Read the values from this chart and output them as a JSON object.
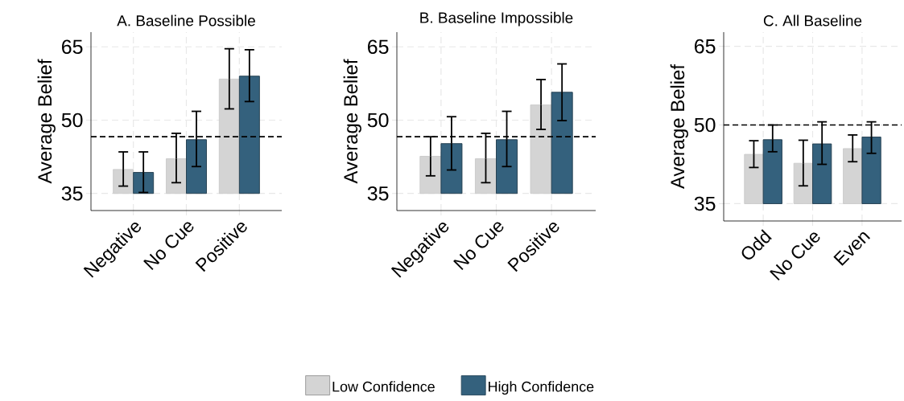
{
  "chart_data": [
    {
      "type": "bar",
      "title": "A. Baseline Possible",
      "ylabel": "Average Belief",
      "categories": [
        "Negative",
        "No Cue",
        "Positive"
      ],
      "series": [
        {
          "color": "#d4d4d4",
          "base": [
            35,
            35,
            35
          ],
          "values": [
            4.9,
            7.1,
            23.4
          ],
          "errors": [
            [
              36.5,
              43.5
            ],
            [
              37.2,
              47.3
            ],
            [
              52.3,
              64.6
            ]
          ]
        },
        {
          "color": "#34617d",
          "base": [
            35,
            35,
            35
          ],
          "values": [
            4.3,
            11.0,
            24.0
          ],
          "errors": [
            [
              35.2,
              43.5
            ],
            [
              40.5,
              51.8
            ],
            [
              53.8,
              64.4
            ]
          ]
        }
      ],
      "ylim": [
        31.5,
        68
      ],
      "yticks": [
        35,
        50,
        65
      ],
      "grid": true,
      "ref_lines": [
        {
          "axis": "y",
          "value": 46.6,
          "line_style": "dashed"
        }
      ]
    },
    {
      "type": "bar",
      "title": "B. Baseline Impossible",
      "ylabel": "Average Belief",
      "categories": [
        "Negative",
        "No Cue",
        "Positive"
      ],
      "series": [
        {
          "name": "Low Confidence",
          "color": "#d4d4d4",
          "base": [
            35,
            35,
            35
          ],
          "values": [
            7.6,
            7.1,
            18.1
          ],
          "errors": [
            [
              38.6,
              46.6
            ],
            [
              37.2,
              47.3
            ],
            [
              48.1,
              58.3
            ]
          ]
        },
        {
          "name": "High Confidence",
          "color": "#34617d",
          "base": [
            35,
            35,
            35
          ],
          "values": [
            10.2,
            11.0,
            20.7
          ],
          "errors": [
            [
              39.8,
              50.7
            ],
            [
              40.5,
              51.8
            ],
            [
              49.9,
              61.5
            ]
          ]
        }
      ],
      "ylim": [
        31.5,
        68
      ],
      "yticks": [
        35,
        50,
        65
      ],
      "grid": true,
      "legend": "bottom",
      "ref_lines": [
        {
          "axis": "y",
          "value": 46.6,
          "line_style": "dashed"
        }
      ]
    },
    {
      "type": "bar",
      "title": "C. All Baseline",
      "ylabel": "Average Belief",
      "categories": [
        "Odd",
        "No Cue",
        "Even"
      ],
      "series": [
        {
          "color": "#d4d4d4",
          "base": [
            35,
            35,
            35
          ],
          "values": [
            9.4,
            7.7,
            10.5
          ],
          "errors": [
            [
              41.9,
              47.0
            ],
            [
              38.4,
              47.1
            ],
            [
              43.0,
              48.1
            ]
          ]
        },
        {
          "color": "#34617d",
          "base": [
            35,
            35,
            35
          ],
          "values": [
            12.2,
            11.4,
            12.7
          ],
          "errors": [
            [
              44.9,
              50.0
            ],
            [
              42.5,
              50.6
            ],
            [
              44.6,
              50.6
            ]
          ]
        }
      ],
      "ylim": [
        31.7,
        67.7
      ],
      "yticks": [
        35,
        50,
        65
      ],
      "grid": true,
      "ref_lines": [
        {
          "axis": "y",
          "value": 50.0,
          "line_style": "dashed"
        }
      ]
    }
  ]
}
